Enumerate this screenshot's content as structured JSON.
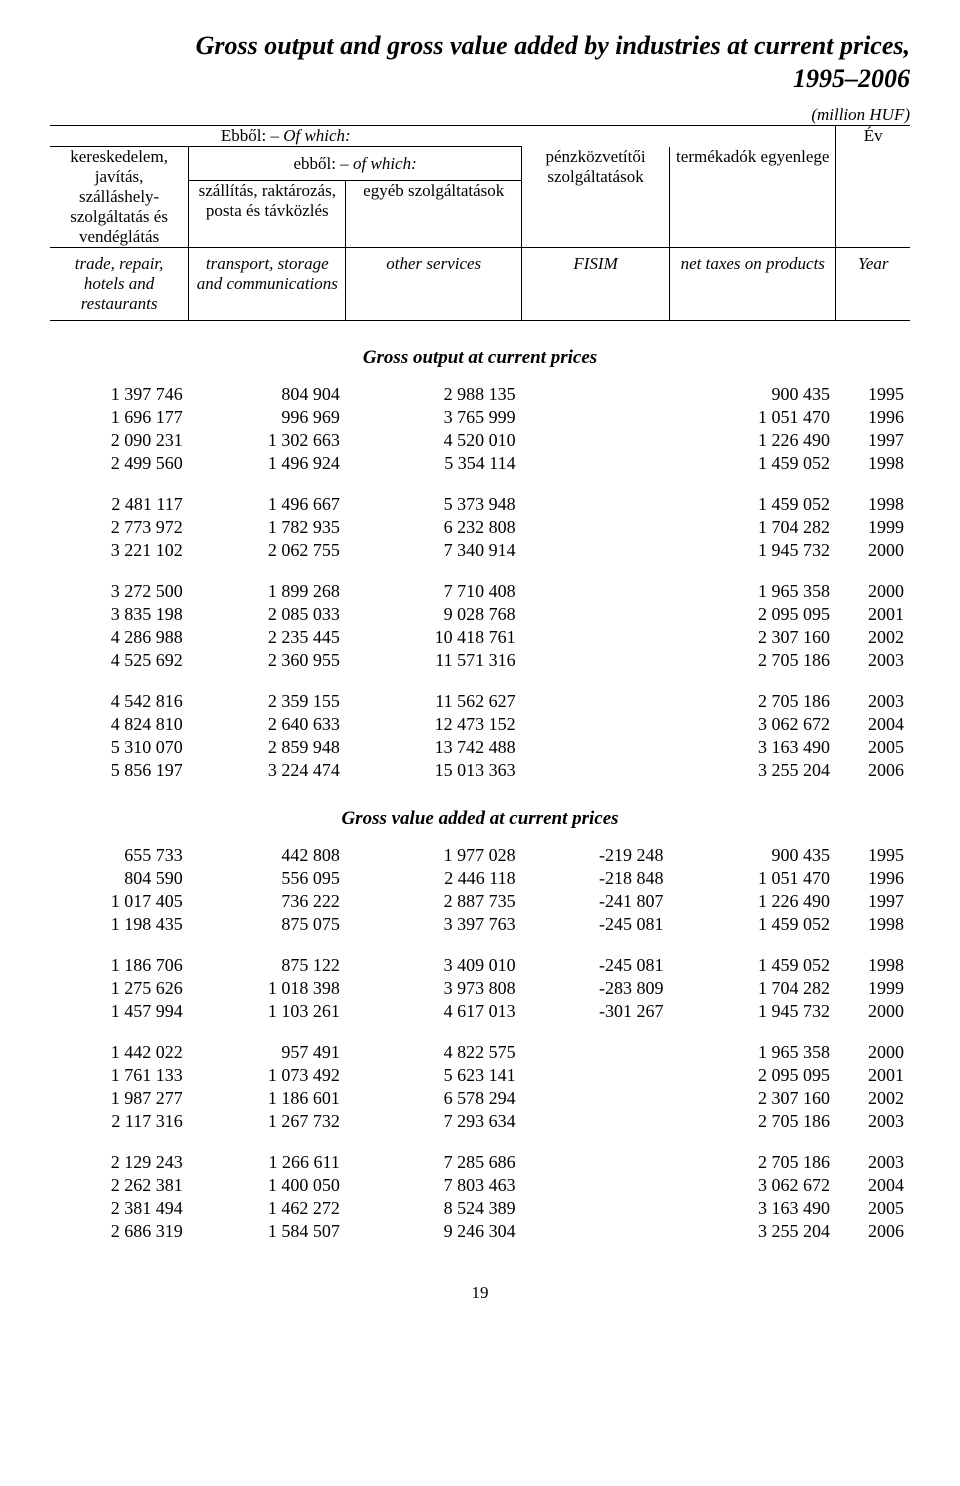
{
  "title_line1": "Gross output and gross value added by industries at current prices,",
  "title_line2": "1995–2006",
  "unit": "(million HUF)",
  "header": {
    "ofwhich_hu": "Ebből:",
    "ofwhich_en": "Of which:",
    "ev": "Év",
    "ebbol_hu": "ebből:",
    "ebbol_en": "of which:",
    "col1_hu": "kereskedelem, javítás, szálláshely-szolgáltatás és vendéglátás",
    "col2_hu": "szállítás, raktározás, posta és távközlés",
    "col3_hu": "egyéb szolgáltatások",
    "col4_hu": "pénzközvetítői szolgáltatások",
    "col5_hu": "termékadók egyenlege",
    "col1_en": "trade, repair, hotels and restaurants",
    "col2_en": "transport, storage and communications",
    "col3_en": "other services",
    "col4_en": "FISIM",
    "col5_en": "net taxes on products",
    "year_en": "Year"
  },
  "section1_title": "Gross output at current prices",
  "section2_title": "Gross value added at current prices",
  "page_number": "19",
  "output_blocks": [
    [
      [
        "1 397 746",
        "804 904",
        "2 988 135",
        "",
        "900 435",
        "1995"
      ],
      [
        "1 696 177",
        "996 969",
        "3 765 999",
        "",
        "1 051 470",
        "1996"
      ],
      [
        "2 090 231",
        "1 302 663",
        "4 520 010",
        "",
        "1 226 490",
        "1997"
      ],
      [
        "2 499 560",
        "1 496 924",
        "5 354 114",
        "",
        "1 459 052",
        "1998"
      ]
    ],
    [
      [
        "2 481 117",
        "1 496 667",
        "5 373 948",
        "",
        "1 459 052",
        "1998"
      ],
      [
        "2 773 972",
        "1 782 935",
        "6 232 808",
        "",
        "1 704 282",
        "1999"
      ],
      [
        "3 221 102",
        "2 062 755",
        "7 340 914",
        "",
        "1 945 732",
        "2000"
      ]
    ],
    [
      [
        "3 272 500",
        "1 899 268",
        "7 710 408",
        "",
        "1 965 358",
        "2000"
      ],
      [
        "3 835 198",
        "2 085 033",
        "9 028 768",
        "",
        "2 095 095",
        "2001"
      ],
      [
        "4 286 988",
        "2 235 445",
        "10 418 761",
        "",
        "2 307 160",
        "2002"
      ],
      [
        "4 525 692",
        "2 360 955",
        "11 571 316",
        "",
        "2 705 186",
        "2003"
      ]
    ],
    [
      [
        "4 542 816",
        "2 359 155",
        "11 562 627",
        "",
        "2 705 186",
        "2003"
      ],
      [
        "4 824 810",
        "2 640 633",
        "12 473 152",
        "",
        "3 062 672",
        "2004"
      ],
      [
        "5 310 070",
        "2 859 948",
        "13 742 488",
        "",
        "3 163 490",
        "2005"
      ],
      [
        "5 856 197",
        "3 224 474",
        "15 013 363",
        "",
        "3 255 204",
        "2006"
      ]
    ]
  ],
  "value_added_blocks": [
    [
      [
        "655 733",
        "442 808",
        "1 977 028",
        "-219 248",
        "900 435",
        "1995"
      ],
      [
        "804 590",
        "556 095",
        "2 446 118",
        "-218 848",
        "1 051 470",
        "1996"
      ],
      [
        "1 017 405",
        "736 222",
        "2 887 735",
        "-241 807",
        "1 226 490",
        "1997"
      ],
      [
        "1 198 435",
        "875 075",
        "3 397 763",
        "-245 081",
        "1 459 052",
        "1998"
      ]
    ],
    [
      [
        "1 186 706",
        "875 122",
        "3 409 010",
        "-245 081",
        "1 459 052",
        "1998"
      ],
      [
        "1 275 626",
        "1 018 398",
        "3 973 808",
        "-283 809",
        "1 704 282",
        "1999"
      ],
      [
        "1 457 994",
        "1 103 261",
        "4 617 013",
        "-301 267",
        "1 945 732",
        "2000"
      ]
    ],
    [
      [
        "1 442 022",
        "957 491",
        "4 822 575",
        "",
        "1 965 358",
        "2000"
      ],
      [
        "1 761 133",
        "1 073 492",
        "5 623 141",
        "",
        "2 095 095",
        "2001"
      ],
      [
        "1 987 277",
        "1 186 601",
        "6 578 294",
        "",
        "2 307 160",
        "2002"
      ],
      [
        "2 117 316",
        "1 267 732",
        "7 293 634",
        "",
        "2 705 186",
        "2003"
      ]
    ],
    [
      [
        "2 129 243",
        "1 266 611",
        "7 285 686",
        "",
        "2 705 186",
        "2003"
      ],
      [
        "2 262 381",
        "1 400 050",
        "7 803 463",
        "",
        "3 062 672",
        "2004"
      ],
      [
        "2 381 494",
        "1 462 272",
        "8 524 389",
        "",
        "3 163 490",
        "2005"
      ],
      [
        "2 686 319",
        "1 584 507",
        "9 246 304",
        "",
        "3 255 204",
        "2006"
      ]
    ]
  ]
}
